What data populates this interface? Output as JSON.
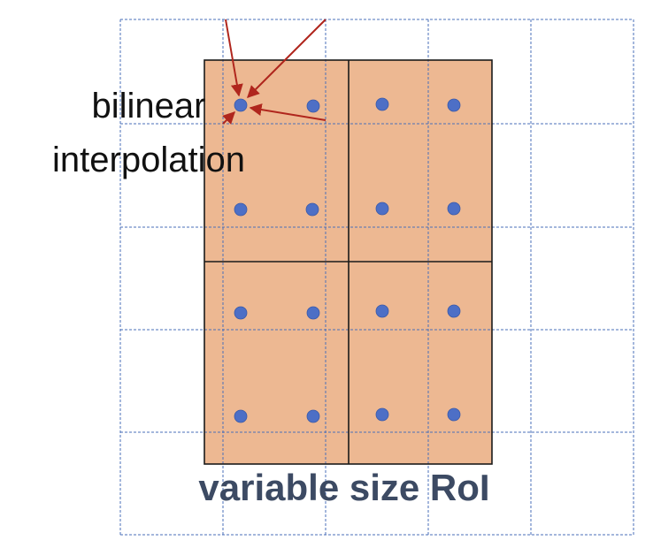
{
  "labels": {
    "interpolation_line1": "bilinear",
    "interpolation_line2": "interpolation",
    "caption": "variable size RoI"
  },
  "colors": {
    "background": "#ffffff",
    "grid_dashed": "#4a6fb8",
    "roi_fill": "#edb892",
    "roi_stroke": "#1a1a1a",
    "sample_point": "#4d6fc6",
    "arrow": "#b0261d",
    "label_text": "#111111",
    "caption_text": "#3c4a63"
  },
  "structure": {
    "feature_grid": "6x5 dashed cells",
    "roi_bins": "2x2",
    "samples_per_bin": "2x2 (16 total)",
    "arrows_to_sample": 4
  }
}
